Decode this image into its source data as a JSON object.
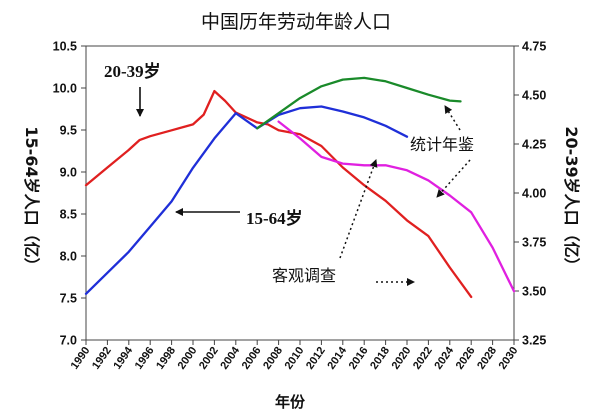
{
  "chart_data": {
    "type": "line",
    "title": "中国历年劳动年龄人口",
    "xlabel": "年份",
    "ylabel_left": "15-64岁人口（亿）",
    "ylabel_right": "20-39岁人口（亿）",
    "xlim": [
      1990,
      2030
    ],
    "x_ticks": [
      "1990",
      "1992",
      "1994",
      "1996",
      "1998",
      "2000",
      "2002",
      "2004",
      "2006",
      "2008",
      "2010",
      "2012",
      "2014",
      "2016",
      "2018",
      "2020",
      "2022",
      "2024",
      "2026",
      "2028",
      "2030"
    ],
    "ylim_left": [
      7.0,
      10.5
    ],
    "y_ticks_left": [
      "7.0",
      "7.5",
      "8.0",
      "8.5",
      "9.0",
      "9.5",
      "10.0",
      "10.5"
    ],
    "ylim_right": [
      3.25,
      4.75
    ],
    "y_ticks_right": [
      "3.25",
      "3.50",
      "3.75",
      "4.00",
      "4.25",
      "4.50",
      "4.75"
    ],
    "grid": false,
    "series": [
      {
        "axis": "right",
        "color": "#e02020",
        "points": [
          [
            1990,
            4.04
          ],
          [
            1992,
            4.13
          ],
          [
            1994,
            4.22
          ],
          [
            1995,
            4.27
          ],
          [
            1996,
            4.29
          ],
          [
            1998,
            4.32
          ],
          [
            2000,
            4.35
          ],
          [
            2001,
            4.4
          ],
          [
            2002,
            4.52
          ],
          [
            2003,
            4.47
          ],
          [
            2004,
            4.41
          ],
          [
            2006,
            4.36
          ],
          [
            2007,
            4.35
          ],
          [
            2008,
            4.32
          ],
          [
            2010,
            4.3
          ],
          [
            2012,
            4.24
          ],
          [
            2014,
            4.13
          ],
          [
            2016,
            4.04
          ],
          [
            2018,
            3.96
          ],
          [
            2020,
            3.86
          ],
          [
            2022,
            3.78
          ],
          [
            2024,
            3.62
          ],
          [
            2026,
            3.47
          ]
        ]
      },
      {
        "axis": "left",
        "color": "#1f2fd8",
        "points": [
          [
            1990,
            7.55
          ],
          [
            1992,
            7.8
          ],
          [
            1994,
            8.05
          ],
          [
            1996,
            8.35
          ],
          [
            1998,
            8.65
          ],
          [
            2000,
            9.05
          ],
          [
            2002,
            9.4
          ],
          [
            2004,
            9.7
          ],
          [
            2006,
            9.52
          ],
          [
            2008,
            9.68
          ],
          [
            2010,
            9.76
          ],
          [
            2012,
            9.78
          ],
          [
            2014,
            9.72
          ],
          [
            2016,
            9.65
          ],
          [
            2018,
            9.55
          ],
          [
            2020,
            9.42
          ]
        ]
      },
      {
        "axis": "left",
        "color": "#1a8a2a",
        "points": [
          [
            2006,
            9.52
          ],
          [
            2008,
            9.7
          ],
          [
            2010,
            9.88
          ],
          [
            2012,
            10.02
          ],
          [
            2014,
            10.1
          ],
          [
            2016,
            10.12
          ],
          [
            2018,
            10.08
          ],
          [
            2020,
            10.0
          ],
          [
            2022,
            9.92
          ],
          [
            2024,
            9.85
          ],
          [
            2025,
            9.84
          ]
        ]
      },
      {
        "axis": "left",
        "color": "#e020e0",
        "points": [
          [
            2008,
            9.6
          ],
          [
            2010,
            9.4
          ],
          [
            2012,
            9.18
          ],
          [
            2014,
            9.1
          ],
          [
            2016,
            9.08
          ],
          [
            2018,
            9.08
          ],
          [
            2020,
            9.02
          ],
          [
            2022,
            8.9
          ],
          [
            2024,
            8.72
          ],
          [
            2026,
            8.52
          ],
          [
            2028,
            8.1
          ],
          [
            2030,
            7.58
          ]
        ]
      }
    ],
    "annotations": [
      {
        "text": "20-39岁"
      },
      {
        "text": "15-64岁"
      },
      {
        "text": "统计年鉴"
      },
      {
        "text": "客观调查"
      }
    ]
  }
}
